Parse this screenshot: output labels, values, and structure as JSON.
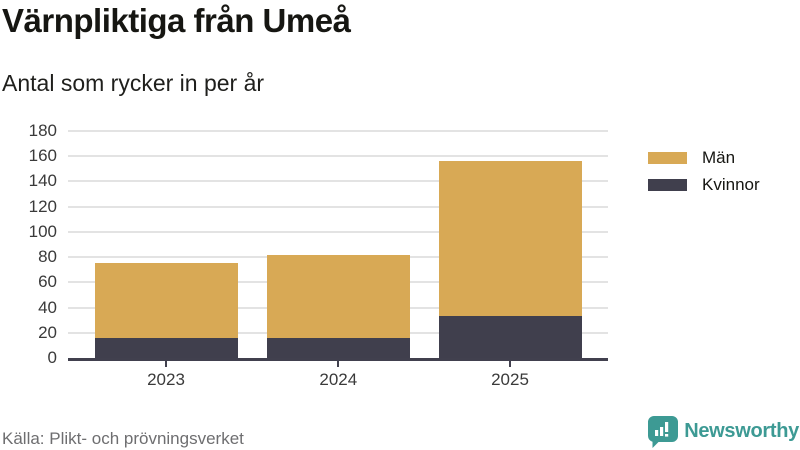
{
  "header": {
    "title": "Värnpliktiga från Umeå",
    "subtitle": "Antal som rycker in per år"
  },
  "chart_data": {
    "type": "bar",
    "stacked": true,
    "title": "Värnpliktiga från Umeå",
    "subtitle": "Antal som rycker in per år",
    "categories": [
      "2023",
      "2024",
      "2025"
    ],
    "series": [
      {
        "name": "Män",
        "color": "#D8A955",
        "values": [
          59,
          66,
          123
        ]
      },
      {
        "name": "Kvinnor",
        "color": "#403F4D",
        "values": [
          16,
          16,
          33
        ]
      }
    ],
    "stack_bottom_to_top": [
      "Kvinnor",
      "Män"
    ],
    "totals": [
      75,
      82,
      156
    ],
    "xlabel": "",
    "ylabel": "",
    "ylim": [
      0,
      180
    ],
    "ytick_step": 20,
    "grid": true,
    "legend_position": "right",
    "gridline_color": "#E3E3E3",
    "axis_color": "#41404E",
    "tick_label_color": "#3A3A3A"
  },
  "footer": {
    "source": "Källa: Plikt- och prövningsverket",
    "brand": "Newsworthy",
    "brand_color": "#3D9A94"
  }
}
